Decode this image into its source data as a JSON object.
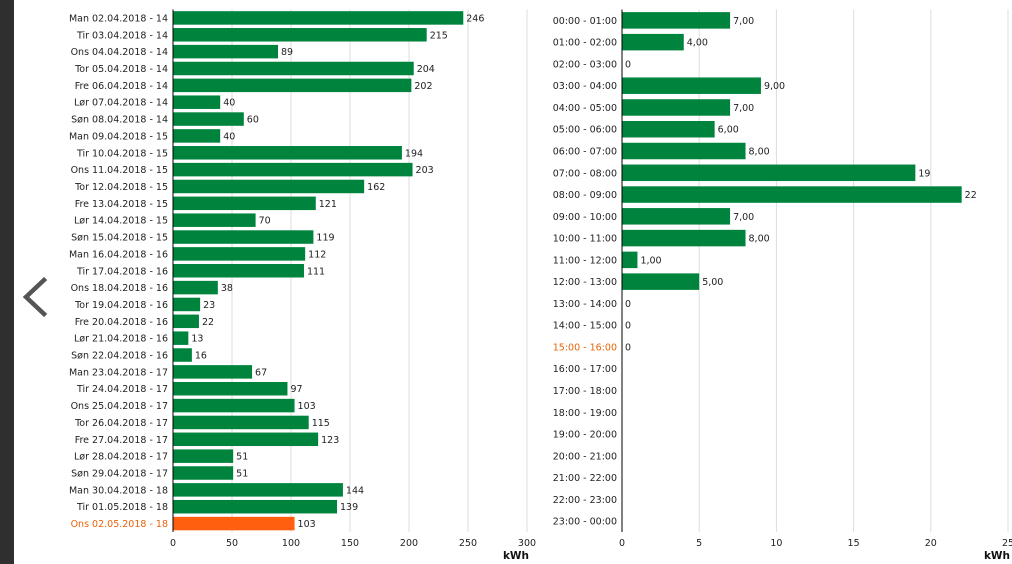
{
  "colors": {
    "bar": "#00843d",
    "highlight_bar": "#ff5f0f",
    "highlight_label": "#e8630a",
    "label": "#222222",
    "grid": "#dddddd",
    "axis": "#000000"
  },
  "nav": {
    "prev_icon": "chevron-left-icon"
  },
  "chart_data": [
    {
      "type": "bar",
      "orientation": "horizontal",
      "categories": [
        "Man 02.04.2018 - 14",
        "Tir 03.04.2018 - 14",
        "Ons 04.04.2018 - 14",
        "Tor 05.04.2018 - 14",
        "Fre 06.04.2018 - 14",
        "Lør 07.04.2018 - 14",
        "Søn 08.04.2018 - 14",
        "Man 09.04.2018 - 15",
        "Tir 10.04.2018 - 15",
        "Ons 11.04.2018 - 15",
        "Tor 12.04.2018 - 15",
        "Fre 13.04.2018 - 15",
        "Lør 14.04.2018 - 15",
        "Søn 15.04.2018 - 15",
        "Man 16.04.2018 - 16",
        "Tir 17.04.2018 - 16",
        "Ons 18.04.2018 - 16",
        "Tor 19.04.2018 - 16",
        "Fre 20.04.2018 - 16",
        "Lør 21.04.2018 - 16",
        "Søn 22.04.2018 - 16",
        "Man 23.04.2018 - 17",
        "Tir 24.04.2018 - 17",
        "Ons 25.04.2018 - 17",
        "Tor 26.04.2018 - 17",
        "Fre 27.04.2018 - 17",
        "Lør 28.04.2018 - 17",
        "Søn 29.04.2018 - 17",
        "Man 30.04.2018 - 18",
        "Tir 01.05.2018 - 18",
        "Ons 02.05.2018 - 18"
      ],
      "values": [
        246,
        215,
        89,
        204,
        202,
        40,
        60,
        40,
        194,
        203,
        162,
        121,
        70,
        119,
        112,
        111,
        38,
        23,
        22,
        13,
        16,
        67,
        97,
        103,
        115,
        123,
        51,
        51,
        144,
        139,
        103
      ],
      "value_labels": [
        "246",
        "215",
        "89",
        "204",
        "202",
        "40",
        "60",
        "40",
        "194",
        "203",
        "162",
        "121",
        "70",
        "119",
        "112",
        "111",
        "38",
        "23",
        "22",
        "13",
        "16",
        "67",
        "97",
        "103",
        "115",
        "123",
        "51",
        "51",
        "144",
        "139",
        "103"
      ],
      "highlight_index": 30,
      "xlim": [
        0,
        300
      ],
      "xticks": [
        0,
        50,
        100,
        150,
        200,
        250,
        300
      ],
      "unit": "kWh",
      "grid": true
    },
    {
      "type": "bar",
      "orientation": "horizontal",
      "categories": [
        "00:00 - 01:00",
        "01:00 - 02:00",
        "02:00 - 03:00",
        "03:00 - 04:00",
        "04:00 - 05:00",
        "05:00 - 06:00",
        "06:00 - 07:00",
        "07:00 - 08:00",
        "08:00 - 09:00",
        "09:00 - 10:00",
        "10:00 - 11:00",
        "11:00 - 12:00",
        "12:00 - 13:00",
        "13:00 - 14:00",
        "14:00 - 15:00",
        "15:00 - 16:00",
        "16:00 - 17:00",
        "17:00 - 18:00",
        "18:00 - 19:00",
        "19:00 - 20:00",
        "20:00 - 21:00",
        "21:00 - 22:00",
        "22:00 - 23:00",
        "23:00 - 00:00"
      ],
      "values": [
        7,
        4,
        0,
        9,
        7,
        6,
        8,
        19,
        22,
        7,
        8,
        1,
        5,
        0,
        0,
        0,
        null,
        null,
        null,
        null,
        null,
        null,
        null,
        null
      ],
      "value_labels": [
        "7,00",
        "4,00",
        "0",
        "9,00",
        "7,00",
        "6,00",
        "8,00",
        "19",
        "22",
        "7,00",
        "8,00",
        "1,00",
        "5,00",
        "0",
        "0",
        "0",
        "",
        "",
        "",
        "",
        "",
        "",
        "",
        ""
      ],
      "highlight_index": 15,
      "xlim": [
        0,
        25
      ],
      "xticks": [
        0,
        5,
        10,
        15,
        20,
        25
      ],
      "unit": "kWh",
      "grid": true
    }
  ]
}
